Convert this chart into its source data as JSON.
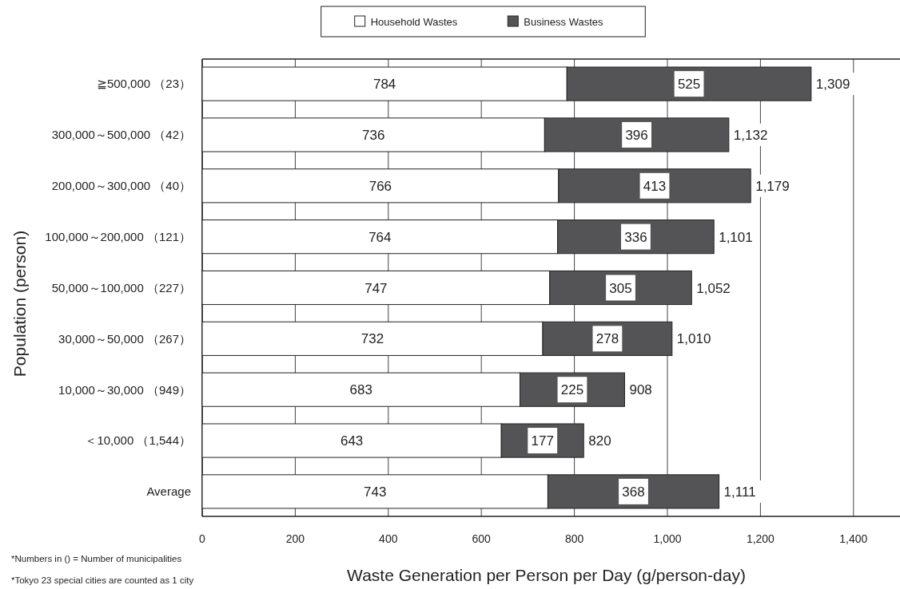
{
  "chart_data": {
    "type": "bar",
    "orientation": "horizontal",
    "stacked": true,
    "categories": [
      "≧500,000 （23）",
      "300,000～500,000 （42）",
      "200,000～300,000 （40）",
      "100,000～200,000 （121）",
      "50,000～100,000 （227）",
      "30,000～50,000 （267）",
      "10,000～30,000 （949）",
      "＜10,000 （1,544）",
      "Average"
    ],
    "series": [
      {
        "name": "Household Wastes",
        "color": "#ffffff",
        "values": [
          784,
          736,
          766,
          764,
          747,
          732,
          683,
          643,
          743
        ]
      },
      {
        "name": "Business Wastes",
        "color": "#545457",
        "values": [
          525,
          396,
          413,
          336,
          305,
          278,
          225,
          177,
          368
        ]
      }
    ],
    "totals": [
      "1,309",
      "1,132",
      "1,179",
      "1,101",
      "1,052",
      "1,010",
      "908",
      "820",
      "1,111"
    ],
    "data_labels": true,
    "xlim": [
      0,
      1500
    ],
    "xticks": [
      0,
      200,
      400,
      600,
      800,
      {
        "value": 1000,
        "label": "1,000"
      },
      {
        "value": 1200,
        "label": "1,200"
      },
      {
        "value": 1400,
        "label": "1,400"
      }
    ],
    "xlabel": "Waste Generation per Person per Day (g/person-day)",
    "ylabel": "Population (person)",
    "annotations": [
      "*Numbers in () = Number of municipalities",
      "*Tokyo 23 special cities are counted as 1 city"
    ],
    "grid": "x",
    "legend": "top"
  }
}
